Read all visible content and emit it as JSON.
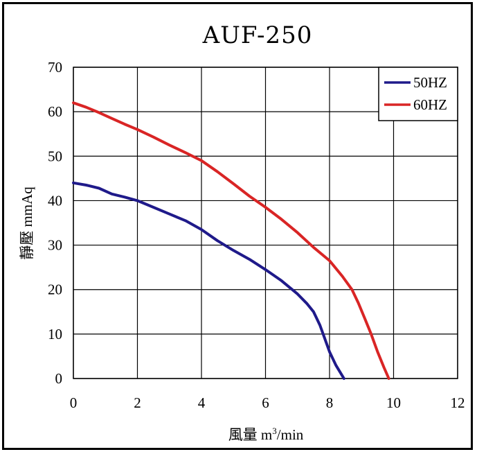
{
  "chart_data": {
    "type": "line",
    "title": "AUF-250",
    "xlabel": "風量 m³/min",
    "xlabel_main": "風量 m",
    "xlabel_sup": "3",
    "xlabel_tail": "/min",
    "ylabel": "靜壓 mmAq",
    "xlim": [
      0,
      12
    ],
    "ylim": [
      0,
      70
    ],
    "xticks": [
      "0",
      "2",
      "4",
      "6",
      "8",
      "10",
      "12"
    ],
    "yticks": [
      "0",
      "10",
      "20",
      "30",
      "40",
      "50",
      "60",
      "70"
    ],
    "grid": true,
    "legend_position": "top-right",
    "series": [
      {
        "name": "50HZ",
        "color": "#1f1a8a",
        "points": [
          [
            0,
            44
          ],
          [
            0.4,
            43.5
          ],
          [
            0.8,
            42.8
          ],
          [
            1.2,
            41.5
          ],
          [
            1.6,
            40.8
          ],
          [
            2,
            40
          ],
          [
            2.5,
            38.5
          ],
          [
            3,
            37
          ],
          [
            3.5,
            35.5
          ],
          [
            4,
            33.5
          ],
          [
            4.5,
            31
          ],
          [
            5,
            28.8
          ],
          [
            5.5,
            26.8
          ],
          [
            6,
            24.5
          ],
          [
            6.5,
            22
          ],
          [
            7,
            19
          ],
          [
            7.3,
            16.8
          ],
          [
            7.5,
            15
          ],
          [
            7.7,
            12
          ],
          [
            7.85,
            9
          ],
          [
            8,
            6
          ],
          [
            8.2,
            3
          ],
          [
            8.45,
            0
          ]
        ]
      },
      {
        "name": "60HZ",
        "color": "#d92525",
        "points": [
          [
            0,
            62
          ],
          [
            0.4,
            61
          ],
          [
            0.8,
            59.8
          ],
          [
            1.2,
            58.5
          ],
          [
            1.6,
            57.2
          ],
          [
            2,
            56
          ],
          [
            2.5,
            54.3
          ],
          [
            3,
            52.5
          ],
          [
            3.5,
            50.8
          ],
          [
            4,
            49
          ],
          [
            4.5,
            46.5
          ],
          [
            5,
            43.8
          ],
          [
            5.5,
            41
          ],
          [
            6,
            38.5
          ],
          [
            6.5,
            35.8
          ],
          [
            7,
            32.8
          ],
          [
            7.5,
            29.5
          ],
          [
            8,
            26.5
          ],
          [
            8.4,
            23
          ],
          [
            8.7,
            20
          ],
          [
            8.9,
            17
          ],
          [
            9.1,
            13.5
          ],
          [
            9.3,
            10
          ],
          [
            9.5,
            6
          ],
          [
            9.7,
            2.5
          ],
          [
            9.85,
            0
          ]
        ]
      }
    ]
  }
}
